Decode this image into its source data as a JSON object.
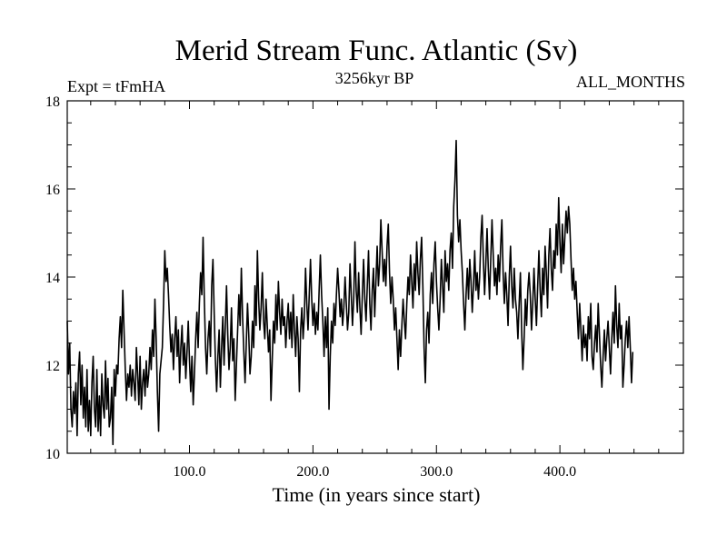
{
  "chart_data": {
    "type": "line",
    "title": "Merid Stream Func. Atlantic (Sv)",
    "subtitle_left": "Expt = tFmHA",
    "subtitle_center": "3256kyr BP",
    "subtitle_right": "ALL_MONTHS",
    "xlabel": "Time (in years since start)",
    "ylabel": "",
    "xlim": [
      1,
      500
    ],
    "ylim": [
      10,
      18
    ],
    "x_ticks": [
      100,
      200,
      300,
      400
    ],
    "x_tick_labels": [
      "100.0",
      "200.0",
      "300.0",
      "400.0"
    ],
    "y_ticks": [
      10,
      12,
      14,
      16,
      18
    ],
    "y_tick_labels": [
      "10",
      "12",
      "14",
      "16",
      "18"
    ],
    "series": [
      {
        "name": "Merid Stream Func. Atlantic",
        "x_start": 1,
        "x_step": 1,
        "values": [
          13.0,
          11.8,
          12.5,
          11.0,
          10.6,
          11.4,
          10.9,
          11.6,
          10.4,
          11.8,
          12.3,
          11.1,
          12.0,
          10.8,
          11.5,
          10.6,
          11.9,
          10.5,
          11.2,
          10.4,
          11.6,
          12.2,
          11.0,
          10.6,
          11.9,
          10.5,
          11.3,
          10.4,
          11.8,
          11.1,
          10.8,
          12.1,
          11.0,
          11.7,
          10.6,
          10.8,
          11.5,
          10.2,
          11.9,
          11.3,
          12.0,
          11.8,
          12.6,
          13.1,
          12.4,
          13.7,
          12.8,
          11.9,
          11.2,
          11.8,
          11.5,
          12.0,
          11.3,
          11.9,
          11.6,
          11.2,
          12.4,
          11.8,
          11.1,
          12.2,
          11.0,
          11.6,
          11.9,
          11.3,
          12.1,
          11.5,
          11.8,
          12.4,
          11.9,
          12.8,
          12.2,
          13.5,
          12.6,
          11.4,
          10.5,
          11.8,
          12.1,
          12.4,
          13.4,
          14.6,
          13.9,
          14.2,
          13.6,
          12.9,
          12.3,
          12.7,
          11.9,
          12.6,
          13.1,
          12.2,
          12.8,
          11.6,
          12.4,
          12.9,
          12.0,
          12.5,
          11.7,
          12.3,
          13.0,
          12.1,
          11.4,
          12.2,
          11.1,
          11.8,
          12.6,
          13.2,
          12.4,
          13.4,
          14.1,
          13.6,
          14.9,
          13.5,
          12.4,
          11.8,
          12.6,
          13.0,
          12.2,
          13.8,
          14.4,
          13.2,
          12.1,
          11.4,
          12.2,
          12.8,
          11.5,
          12.4,
          13.1,
          12.0,
          12.9,
          13.8,
          12.7,
          11.9,
          12.4,
          13.3,
          12.1,
          12.6,
          11.2,
          12.0,
          12.8,
          13.6,
          12.9,
          14.2,
          13.1,
          12.3,
          11.6,
          12.5,
          13.4,
          12.7,
          11.8,
          12.2,
          13.0,
          12.4,
          13.8,
          12.9,
          14.6,
          13.5,
          12.8,
          13.3,
          14.1,
          13.0,
          12.6,
          13.5,
          12.9,
          12.3,
          12.8,
          11.2,
          12.1,
          13.0,
          12.5,
          13.6,
          12.8,
          13.9,
          13.2,
          12.7,
          13.5,
          12.9,
          13.1,
          12.4,
          13.0,
          13.4,
          12.6,
          13.2,
          12.4,
          13.6,
          12.8,
          12.2,
          13.1,
          12.6,
          11.4,
          12.8,
          13.3,
          12.6,
          13.1,
          14.2,
          13.4,
          12.8,
          13.6,
          14.4,
          13.5,
          12.9,
          13.4,
          12.7,
          13.2,
          12.8,
          13.7,
          14.5,
          13.6,
          13.0,
          12.2,
          13.1,
          12.4,
          13.3,
          11.0,
          12.2,
          13.0,
          12.5,
          13.4,
          12.9,
          13.6,
          14.2,
          13.7,
          13.1,
          13.5,
          12.9,
          13.3,
          14.0,
          13.4,
          12.8,
          13.2,
          14.3,
          13.6,
          12.9,
          13.5,
          14.8,
          13.7,
          13.2,
          14.1,
          13.3,
          12.7,
          13.6,
          14.4,
          13.5,
          13.0,
          13.8,
          14.6,
          13.4,
          12.8,
          13.7,
          14.2,
          13.1,
          13.9,
          14.7,
          13.8,
          14.3,
          15.3,
          14.6,
          13.9,
          14.4,
          13.8,
          14.7,
          15.2,
          14.1,
          13.4,
          14.0,
          13.5,
          12.8,
          13.3,
          12.6,
          11.9,
          12.8,
          12.2,
          12.9,
          13.5,
          13.0,
          12.6,
          13.4,
          14.0,
          13.6,
          14.5,
          13.9,
          13.3,
          14.3,
          13.7,
          14.8,
          14.1,
          13.6,
          14.4,
          14.9,
          13.8,
          12.4,
          11.6,
          12.8,
          13.2,
          12.5,
          13.6,
          14.1,
          13.4,
          14.3,
          14.8,
          13.9,
          13.3,
          12.8,
          13.5,
          14.4,
          13.8,
          13.2,
          14.6,
          13.9,
          14.3,
          13.7,
          14.6,
          15.0,
          14.2,
          15.6,
          16.2,
          17.1,
          15.4,
          14.8,
          15.3,
          14.6,
          14.1,
          13.4,
          12.8,
          13.6,
          14.2,
          13.5,
          14.4,
          13.9,
          13.2,
          13.8,
          14.6,
          13.7,
          14.1,
          13.5,
          14.0,
          14.9,
          15.4,
          14.4,
          13.6,
          14.3,
          15.1,
          14.2,
          13.5,
          14.4,
          15.3,
          14.5,
          13.8,
          14.2,
          13.6,
          14.5,
          13.9,
          14.7,
          15.3,
          14.1,
          13.4,
          14.1,
          13.6,
          12.9,
          14.0,
          14.7,
          13.8,
          13.3,
          14.2,
          13.5,
          13.2,
          12.6,
          13.4,
          14.1,
          12.8,
          11.9,
          12.6,
          13.5,
          12.9,
          13.7,
          14.1,
          13.6,
          12.8,
          13.4,
          14.2,
          13.5,
          12.9,
          13.8,
          14.6,
          13.7,
          13.1,
          14.2,
          13.6,
          14.7,
          14.1,
          13.3,
          14.5,
          15.1,
          14.2,
          13.7,
          14.6,
          14.2,
          15.2,
          14.5,
          15.8,
          14.8,
          14.1,
          15.2,
          14.3,
          14.9,
          15.5,
          15.0,
          15.6,
          15.2,
          14.4,
          13.7,
          14.2,
          13.5,
          13.9,
          13.2,
          12.6,
          13.4,
          12.8,
          12.1,
          12.9,
          12.4,
          12.7,
          12.1,
          13.1,
          12.6,
          13.4,
          12.2,
          11.9,
          12.5,
          12.9,
          12.3,
          13.4,
          12.7,
          12.0,
          11.5,
          12.2,
          12.8,
          12.1,
          12.6,
          13.0,
          12.4,
          11.8,
          12.6,
          13.2,
          12.5,
          13.8,
          12.9,
          12.4,
          13.4,
          12.6,
          12.9,
          11.5,
          12.0,
          12.6,
          13.0,
          12.4,
          13.1,
          12.4,
          11.6,
          12.3
        ]
      }
    ]
  }
}
